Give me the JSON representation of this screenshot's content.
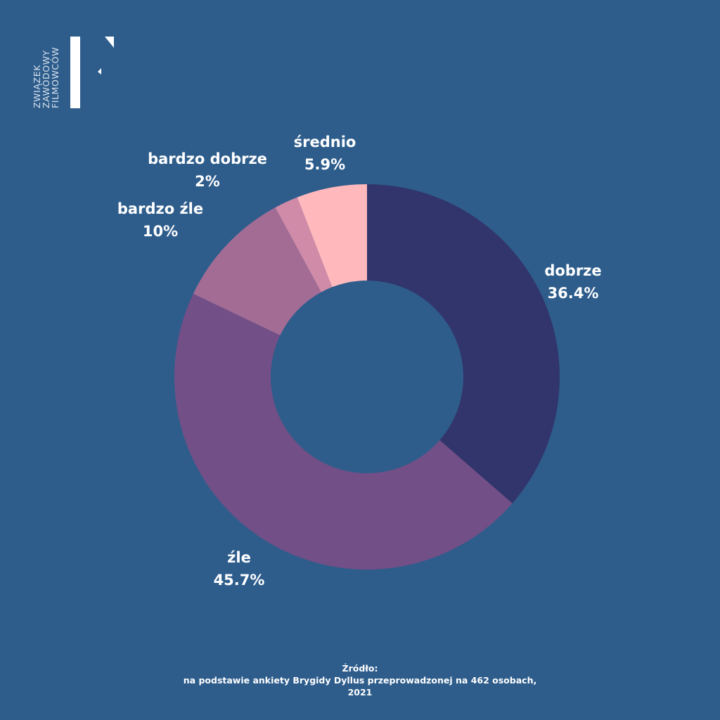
{
  "logo": {
    "lines": [
      "ZWIĄZEK",
      "ZAWODOWY",
      "FILMOWCÓW"
    ],
    "icon": "zzf-logo-mark"
  },
  "colors": {
    "background": "#2e5d8c",
    "dobrze": "#31356b",
    "zle": "#724f86",
    "bardzo_zle": "#a36c95",
    "bardzo_dobrze": "#cf8ba8",
    "srednio": "#ffb9bd"
  },
  "chart_data": {
    "type": "pie",
    "donut": true,
    "start": "top",
    "direction": "clockwise",
    "slices": [
      {
        "label": "dobrze",
        "value": 36.4,
        "display": "36.4%",
        "color": "#31356b"
      },
      {
        "label": "źle",
        "value": 45.7,
        "display": "45.7%",
        "color": "#724f86"
      },
      {
        "label": "bardzo źle",
        "value": 10,
        "display": "10%",
        "color": "#a36c95"
      },
      {
        "label": "bardzo dobrze",
        "value": 2,
        "display": "2%",
        "color": "#cf8ba8"
      },
      {
        "label": "średnio",
        "value": 5.9,
        "display": "5.9%",
        "color": "#ffb9bd"
      }
    ]
  },
  "source": {
    "heading": "Źródło:",
    "line1": "na podstawie ankiety Brygidy Dyllus przeprowadzonej na 462 osobach,",
    "line2": "2021"
  }
}
